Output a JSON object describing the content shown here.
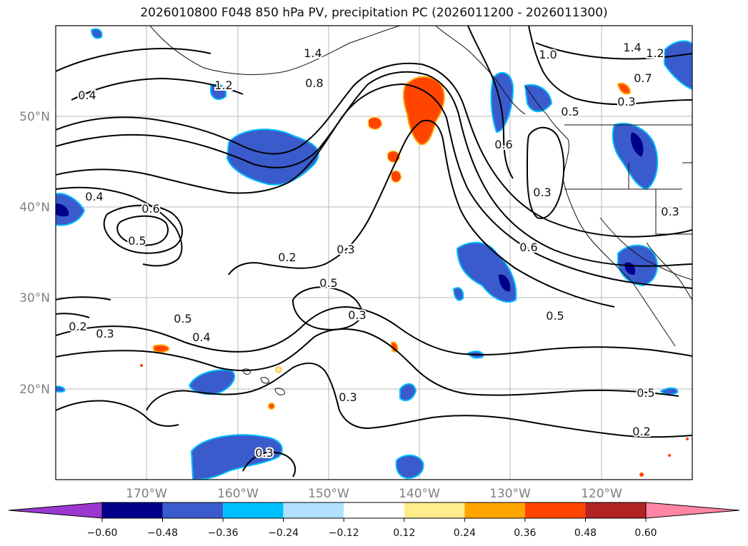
{
  "title": "2026010800 F048 850 hPa PV, precipitation PC (2026011200 - 2026011300)",
  "map": {
    "lat_labels": [
      "50°N",
      "40°N",
      "30°N",
      "20°N"
    ],
    "lon_labels": [
      "170°W",
      "160°W",
      "150°W",
      "140°W",
      "130°W",
      "120°W"
    ],
    "contour_labels": [
      "1.4",
      "1.2",
      "0.8",
      "1.0",
      "1.4",
      "1.2",
      "0.7",
      "0.4",
      "0.5",
      "0.6",
      "0.3",
      "0.3",
      "0.4",
      "0.6",
      "0.5",
      "0.2",
      "0.3",
      "0.5",
      "0.3",
      "0.6",
      "0.5",
      "0.5",
      "0.2",
      "0.3",
      "0.4",
      "0.3",
      "0.5",
      "0.2",
      "0.3",
      "0.3"
    ]
  },
  "colorbar": {
    "ticks": [
      "−0.60",
      "−0.48",
      "−0.36",
      "−0.24",
      "−0.12",
      "0.12",
      "0.24",
      "0.36",
      "0.48",
      "0.60"
    ],
    "colors": [
      "#9a38d0",
      "#00008b",
      "#3a5bcc",
      "#00bfff",
      "#b0e2ff",
      "#ffffff",
      "#ffec8b",
      "#ffa500",
      "#ff4500",
      "#b22222",
      "#ff85a2"
    ]
  }
}
